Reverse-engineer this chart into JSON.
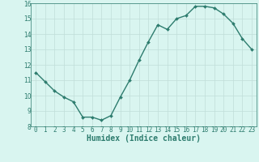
{
  "x": [
    0,
    1,
    2,
    3,
    4,
    5,
    6,
    7,
    8,
    9,
    10,
    11,
    12,
    13,
    14,
    15,
    16,
    17,
    18,
    19,
    20,
    21,
    22,
    23
  ],
  "y": [
    11.5,
    10.9,
    10.3,
    9.9,
    9.6,
    8.6,
    8.6,
    8.4,
    8.7,
    9.9,
    11.0,
    12.3,
    13.5,
    14.6,
    14.3,
    15.0,
    15.2,
    15.8,
    15.8,
    15.7,
    15.3,
    14.7,
    13.7,
    13.0
  ],
  "line_color": "#2d7c6e",
  "marker": "D",
  "marker_size": 2.0,
  "bg_color": "#d9f5f0",
  "grid_color": "#c0ddd8",
  "xlabel": "Humidex (Indice chaleur)",
  "ylim": [
    8,
    16
  ],
  "xlim_min": -0.5,
  "xlim_max": 23.5,
  "yticks": [
    8,
    9,
    10,
    11,
    12,
    13,
    14,
    15,
    16
  ],
  "xticks": [
    0,
    1,
    2,
    3,
    4,
    5,
    6,
    7,
    8,
    9,
    10,
    11,
    12,
    13,
    14,
    15,
    16,
    17,
    18,
    19,
    20,
    21,
    22,
    23
  ],
  "tick_label_fontsize": 5.5,
  "xlabel_fontsize": 7.0,
  "line_width": 1.0
}
